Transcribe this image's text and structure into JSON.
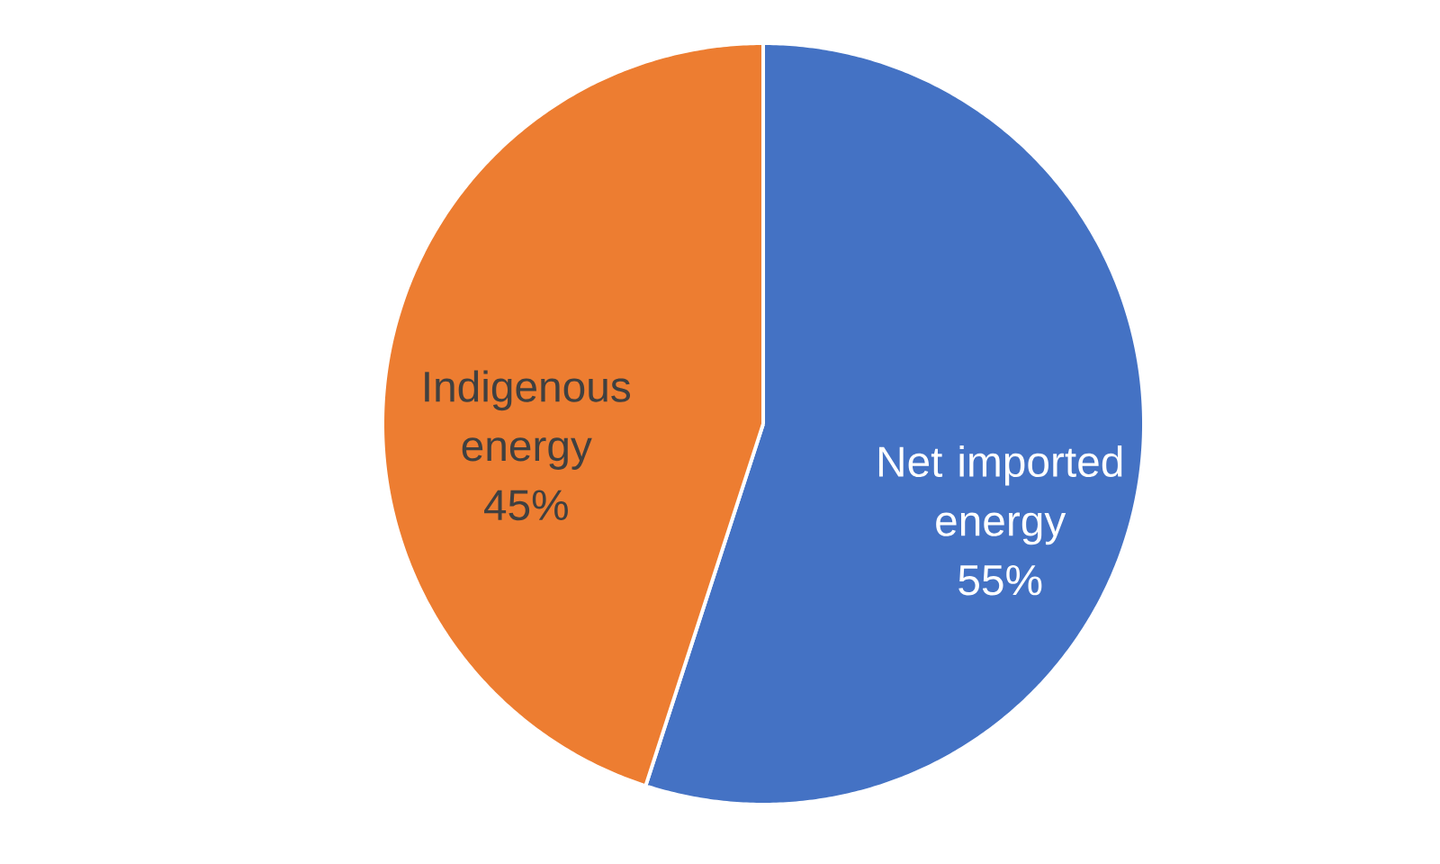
{
  "chart_data": {
    "type": "pie",
    "categories": [
      "Net imported energy",
      "Indigenous energy"
    ],
    "values": [
      55,
      45
    ],
    "colors": [
      "#4472c4",
      "#ed7d31"
    ],
    "value_labels": [
      "55%",
      "45%"
    ]
  }
}
